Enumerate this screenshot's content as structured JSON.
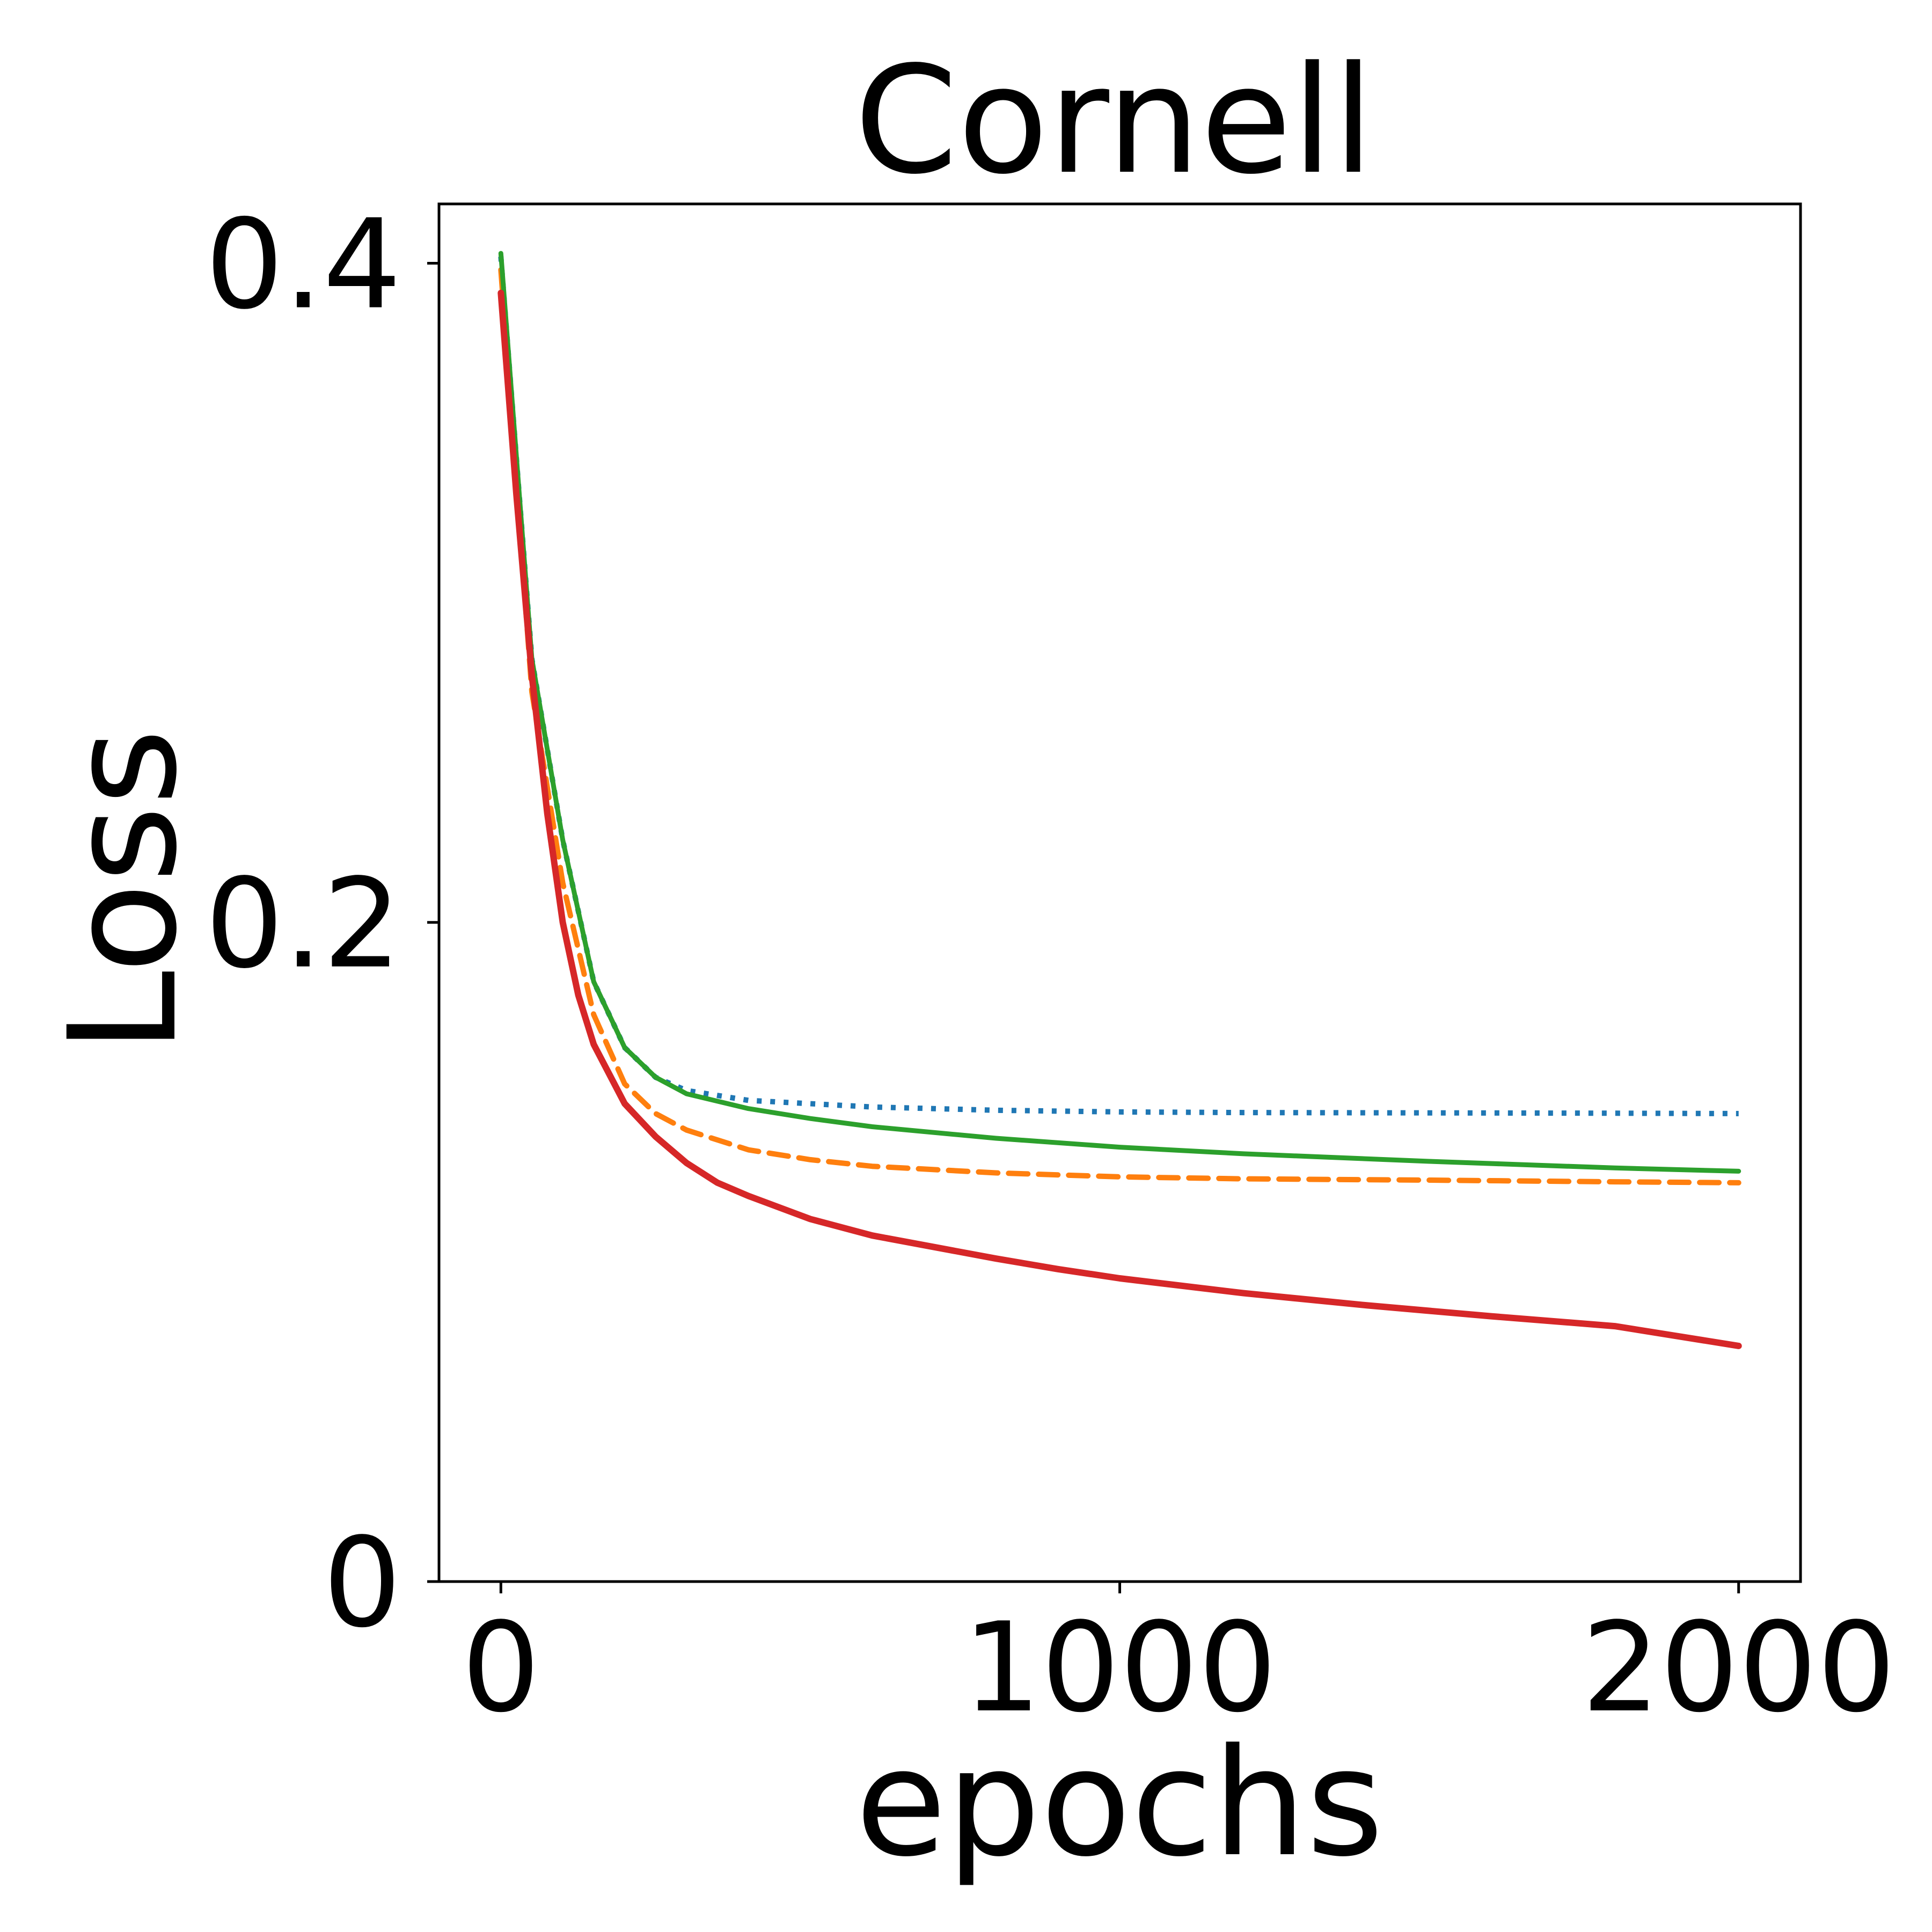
{
  "chart_data": {
    "type": "line",
    "title": "Cornell",
    "xlabel": "epochs",
    "ylabel": "Loss",
    "xlim": [
      -100,
      2100
    ],
    "ylim": [
      0,
      0.418
    ],
    "xticks": [
      0,
      1000,
      2000
    ],
    "xtick_labels": [
      "0",
      "1000",
      "2000"
    ],
    "yticks": [
      0,
      0.2,
      0.4
    ],
    "ytick_labels": [
      "0",
      "0.2",
      "0.4"
    ],
    "grid": false,
    "legend": "none",
    "series": [
      {
        "color": "#1f77b4",
        "style": "dotted",
        "points": [
          [
            0,
            0.402
          ],
          [
            50,
            0.28
          ],
          [
            100,
            0.225
          ],
          [
            150,
            0.182
          ],
          [
            200,
            0.162
          ],
          [
            250,
            0.153
          ],
          [
            300,
            0.149
          ],
          [
            400,
            0.146
          ],
          [
            600,
            0.144
          ],
          [
            800,
            0.143
          ],
          [
            1000,
            0.1425
          ],
          [
            1200,
            0.1423
          ],
          [
            1500,
            0.1422
          ],
          [
            1800,
            0.1421
          ],
          [
            2000,
            0.142
          ]
        ]
      },
      {
        "color": "#ff7f0e",
        "style": "dashed",
        "points": [
          [
            0,
            0.398
          ],
          [
            50,
            0.27
          ],
          [
            100,
            0.212
          ],
          [
            150,
            0.172
          ],
          [
            200,
            0.151
          ],
          [
            250,
            0.142
          ],
          [
            300,
            0.137
          ],
          [
            400,
            0.131
          ],
          [
            500,
            0.128
          ],
          [
            600,
            0.126
          ],
          [
            800,
            0.124
          ],
          [
            1000,
            0.1228
          ],
          [
            1200,
            0.1222
          ],
          [
            1500,
            0.1218
          ],
          [
            1800,
            0.1213
          ],
          [
            2000,
            0.121
          ]
        ]
      },
      {
        "color": "#2ca02c",
        "style": "solid",
        "points": [
          [
            0,
            0.403
          ],
          [
            50,
            0.28
          ],
          [
            100,
            0.225
          ],
          [
            150,
            0.182
          ],
          [
            200,
            0.162
          ],
          [
            250,
            0.153
          ],
          [
            300,
            0.148
          ],
          [
            400,
            0.1435
          ],
          [
            500,
            0.1405
          ],
          [
            600,
            0.138
          ],
          [
            800,
            0.1345
          ],
          [
            1000,
            0.1318
          ],
          [
            1200,
            0.1298
          ],
          [
            1500,
            0.1275
          ],
          [
            1800,
            0.1255
          ],
          [
            2000,
            0.1245
          ]
        ]
      },
      {
        "color": "#d62728",
        "style": "solid",
        "points": [
          [
            0,
            0.391
          ],
          [
            25,
            0.33
          ],
          [
            50,
            0.275
          ],
          [
            75,
            0.233
          ],
          [
            100,
            0.2
          ],
          [
            125,
            0.178
          ],
          [
            150,
            0.163
          ],
          [
            200,
            0.145
          ],
          [
            250,
            0.135
          ],
          [
            300,
            0.127
          ],
          [
            350,
            0.121
          ],
          [
            400,
            0.117
          ],
          [
            500,
            0.11
          ],
          [
            600,
            0.105
          ],
          [
            700,
            0.1015
          ],
          [
            800,
            0.098
          ],
          [
            900,
            0.0948
          ],
          [
            1000,
            0.092
          ],
          [
            1200,
            0.0875
          ],
          [
            1400,
            0.0838
          ],
          [
            1600,
            0.0805
          ],
          [
            1800,
            0.0775
          ],
          [
            2000,
            0.0715
          ]
        ]
      }
    ]
  }
}
